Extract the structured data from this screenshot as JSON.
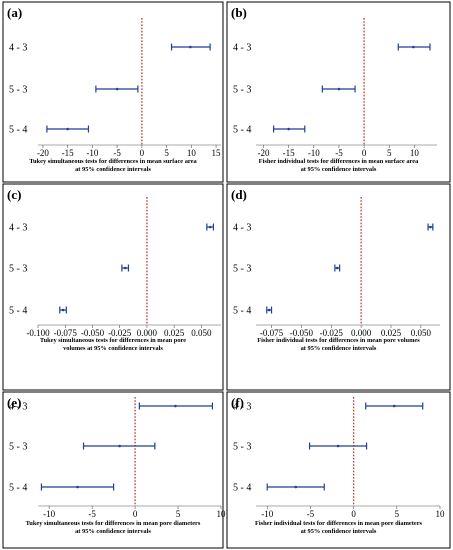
{
  "colors": {
    "interval": "#1f3f99",
    "zero_line": "#c0392b",
    "frame": "#000000",
    "axis": "#555555"
  },
  "chart_data": [
    {
      "panel": "(a)",
      "type": "interval",
      "categories": [
        "4 - 3",
        "5 - 3",
        "5 - 4"
      ],
      "estimates": [
        9.8,
        -5.0,
        -15.0
      ],
      "lower": [
        6.0,
        -9.3,
        -19.2
      ],
      "upper": [
        13.8,
        -0.8,
        -10.8
      ],
      "xlim": [
        -21,
        16
      ],
      "xticks": [
        -20,
        -15,
        -10,
        -5,
        0,
        5,
        10,
        15
      ],
      "tick_labels": [
        "-20",
        "-15",
        "-10",
        "-5",
        "0",
        "5",
        "10",
        "15"
      ],
      "zero_line": 0,
      "xlabel": [
        "Tukey simultaneous tests for differences in mean surface area",
        "at 95% confidence intervals"
      ]
    },
    {
      "panel": "(b)",
      "type": "interval",
      "categories": [
        "4 - 3",
        "5 - 3",
        "5 - 4"
      ],
      "estimates": [
        9.8,
        -5.0,
        -15.0
      ],
      "lower": [
        6.8,
        -8.3,
        -18.0
      ],
      "upper": [
        13.1,
        -1.8,
        -11.8
      ],
      "xlim": [
        -21.5,
        14.5
      ],
      "xticks": [
        -20,
        -15,
        -10,
        -5,
        0,
        5,
        10
      ],
      "tick_labels": [
        "-20",
        "-15",
        "-10",
        "-5",
        "0",
        "5",
        "10"
      ],
      "zero_line": 0,
      "xlabel": [
        "Fisher individual tests for differences in mean surface area",
        "at 95% confidence intervals"
      ]
    },
    {
      "panel": "(c)",
      "type": "interval",
      "categories": [
        "4 - 3",
        "5 - 3",
        "5 - 4"
      ],
      "estimates": [
        0.058,
        -0.02,
        -0.077
      ],
      "lower": [
        0.055,
        -0.023,
        -0.08
      ],
      "upper": [
        0.061,
        -0.017,
        -0.074
      ],
      "xlim": [
        -0.1,
        0.068
      ],
      "xticks": [
        -0.1,
        -0.075,
        -0.05,
        -0.025,
        0.0,
        0.025,
        0.05
      ],
      "tick_labels": [
        "-0.100",
        "-0.075",
        "-0.050",
        "-0.025",
        "0.000",
        "0.025",
        "0.050"
      ],
      "zero_line": 0,
      "xlabel": [
        "Tukey simultaneous tests for differences in mean pore",
        "volumes at 95% confidence intervals"
      ]
    },
    {
      "panel": "(d)",
      "type": "interval",
      "categories": [
        "4 - 3",
        "5 - 3",
        "5 - 4"
      ],
      "estimates": [
        0.058,
        -0.02,
        -0.077
      ],
      "lower": [
        0.056,
        -0.022,
        -0.079
      ],
      "upper": [
        0.06,
        -0.018,
        -0.075
      ],
      "xlim": [
        -0.088,
        0.066
      ],
      "xticks": [
        -0.075,
        -0.05,
        -0.025,
        0.0,
        0.025,
        0.05
      ],
      "tick_labels": [
        "-0.075",
        "-0.050",
        "-0.025",
        "0.000",
        "0.025",
        "0.050"
      ],
      "zero_line": 0,
      "xlabel": [
        "Fisher individual tests for differences in mean pore volumes",
        "at 95% confidence intervals"
      ]
    },
    {
      "panel": "(e)",
      "type": "interval",
      "categories": [
        "4 - 3",
        "5 - 3",
        "5 - 4"
      ],
      "estimates": [
        4.7,
        -1.8,
        -6.7
      ],
      "lower": [
        0.5,
        -6.0,
        -10.9
      ],
      "upper": [
        9.0,
        2.3,
        -2.5
      ],
      "xlim": [
        -11.3,
        10.0
      ],
      "xticks": [
        -10,
        -5,
        0,
        5,
        10
      ],
      "tick_labels": [
        "-10",
        "-5",
        "0",
        "5",
        "10"
      ],
      "zero_line": 0,
      "xlabel": [
        "Tukey simultaneous tests for differences in mean pore diameters",
        "at 95% confidence intervals"
      ]
    },
    {
      "panel": "(f)",
      "type": "interval",
      "categories": [
        "4 - 3",
        "5 - 3",
        "5 - 4"
      ],
      "estimates": [
        4.7,
        -1.8,
        -6.7
      ],
      "lower": [
        1.4,
        -5.1,
        -10.0
      ],
      "upper": [
        8.0,
        1.5,
        -3.4
      ],
      "xlim": [
        -11.3,
        10.0
      ],
      "xticks": [
        -10,
        -5,
        0,
        5,
        10
      ],
      "tick_labels": [
        "-10",
        "-5",
        "0",
        "5",
        "10"
      ],
      "zero_line": 0,
      "xlabel": [
        "Fisher individual tests for differences in mean pore diameters",
        "at 95% confidence intervals"
      ]
    }
  ]
}
